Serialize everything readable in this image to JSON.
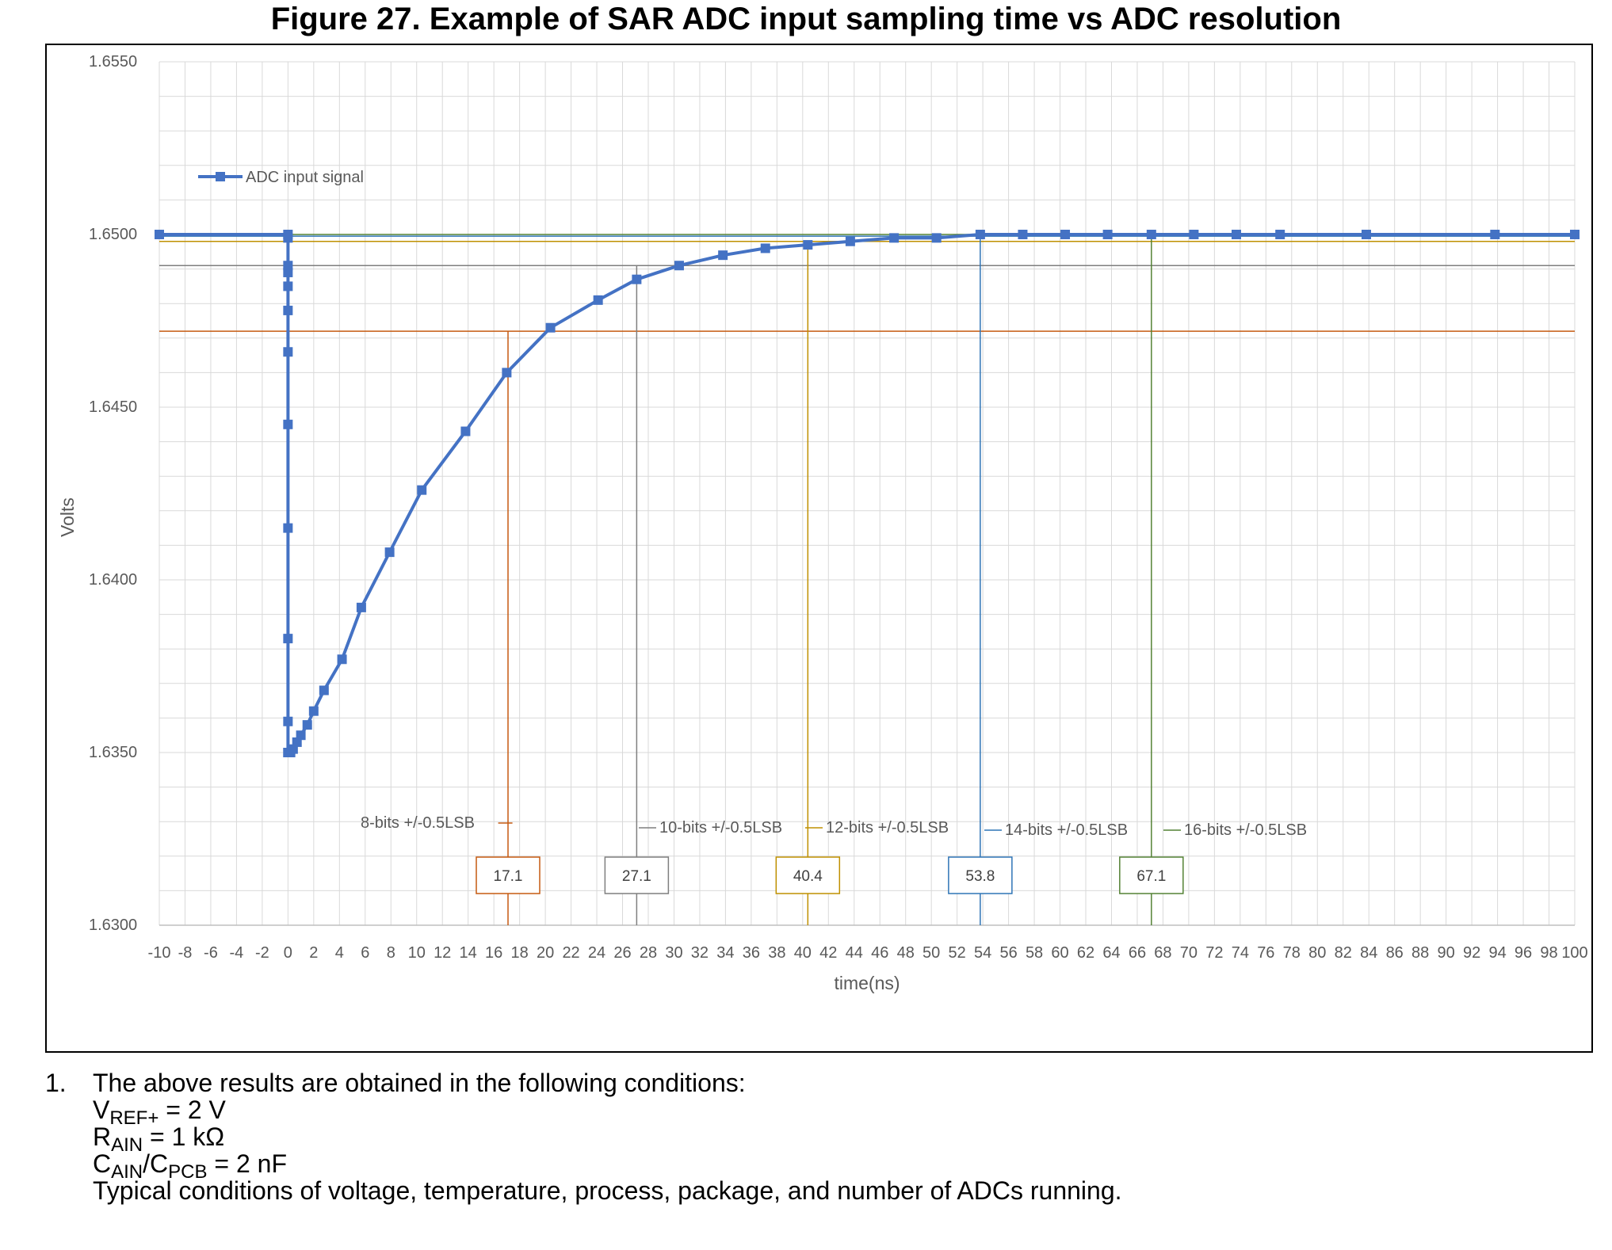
{
  "figure_title": "Figure 27. Example of SAR ADC input sampling time vs ADC resolution",
  "colors": {
    "signal": "#4472C4",
    "bits8": "#C55A11",
    "bits10": "#7F7F7F",
    "bits12": "#BF9000",
    "bits14": "#2E75B6",
    "bits16": "#548235",
    "grid": "#D9D9D9",
    "axis_text": "#595959"
  },
  "chart_data": {
    "type": "line",
    "xlabel": "time(ns)",
    "ylabel": "Volts",
    "xlim": [
      -10,
      100
    ],
    "ylim": [
      1.63,
      1.655
    ],
    "grid": true,
    "legend_position": "top-left",
    "x_ticks": [
      "-10",
      "-8",
      "-6",
      "-4",
      "-2",
      "0",
      "2",
      "4",
      "6",
      "8",
      "10",
      "12",
      "14",
      "16",
      "18",
      "20",
      "22",
      "24",
      "26",
      "28",
      "30",
      "32",
      "34",
      "36",
      "38",
      "40",
      "42",
      "44",
      "46",
      "48",
      "50",
      "52",
      "54",
      "56",
      "58",
      "60",
      "62",
      "64",
      "66",
      "68",
      "70",
      "72",
      "74",
      "76",
      "78",
      "80",
      "82",
      "84",
      "86",
      "88",
      "90",
      "92",
      "94",
      "96",
      "98",
      "100"
    ],
    "y_ticks": [
      "1.6550",
      "1.6500",
      "1.6450",
      "1.6400",
      "1.6350",
      "1.6300"
    ],
    "series": [
      {
        "name": "ADC input signal",
        "x": [
          -10,
          0,
          0,
          0,
          0,
          0,
          0,
          0,
          0,
          0,
          0,
          0,
          0,
          0,
          0.2,
          0.4,
          0.7,
          1.0,
          1.5,
          2.0,
          2.8,
          4.2,
          5.7,
          7.9,
          10.4,
          13.8,
          17.0,
          20.4,
          24.1,
          27.1,
          30.4,
          33.8,
          37.1,
          40.4,
          43.7,
          47.1,
          50.4,
          53.8,
          57.1,
          60.4,
          63.7,
          67.1,
          70.4,
          73.7,
          77.1,
          83.8,
          93.8,
          100
        ],
        "y": [
          1.65,
          1.65,
          1.6499,
          1.6491,
          1.6489,
          1.6485,
          1.6478,
          1.6466,
          1.6445,
          1.6415,
          1.6383,
          1.6359,
          1.635,
          1.635,
          1.635,
          1.6351,
          1.6353,
          1.6355,
          1.6358,
          1.6362,
          1.6368,
          1.6377,
          1.6392,
          1.6408,
          1.6426,
          1.6443,
          1.646,
          1.6473,
          1.6481,
          1.6487,
          1.6491,
          1.6494,
          1.6496,
          1.6497,
          1.6498,
          1.6499,
          1.6499,
          1.65,
          1.65,
          1.65,
          1.65,
          1.65,
          1.65,
          1.65,
          1.65,
          1.65,
          1.65,
          1.65
        ]
      }
    ],
    "thresholds": [
      {
        "label": "8-bits +/-0.5LSB",
        "y": 1.6472,
        "x": 17.1,
        "value_label": "17.1",
        "color_key": "bits8"
      },
      {
        "label": "10-bits +/-0.5LSB",
        "y": 1.6491,
        "x": 27.1,
        "value_label": "27.1",
        "color_key": "bits10"
      },
      {
        "label": "12-bits +/-0.5LSB",
        "y": 1.6498,
        "x": 40.4,
        "value_label": "40.4",
        "color_key": "bits12"
      },
      {
        "label": "14-bits +/-0.5LSB",
        "y": 1.64995,
        "x": 53.8,
        "value_label": "53.8",
        "color_key": "bits14"
      },
      {
        "label": "16-bits +/-0.5LSB",
        "y": 1.65,
        "x": 67.1,
        "value_label": "67.1",
        "color_key": "bits16"
      }
    ]
  },
  "notes": {
    "number": "1.",
    "intro": "The above results are obtained in the following conditions:",
    "vref_main": "V",
    "vref_sub": "REF+",
    "vref_value": " = 2 V",
    "rain_main": "R",
    "rain_sub": "AIN",
    "rain_value": " = 1 kΩ",
    "cain_main": "C",
    "cain_sub": "AIN",
    "cpcb_sep": "/C",
    "cpcb_sub": "PCB",
    "cain_value": " = 2 nF",
    "typical": "Typical conditions of voltage, temperature, process, package, and number of ADCs running."
  }
}
